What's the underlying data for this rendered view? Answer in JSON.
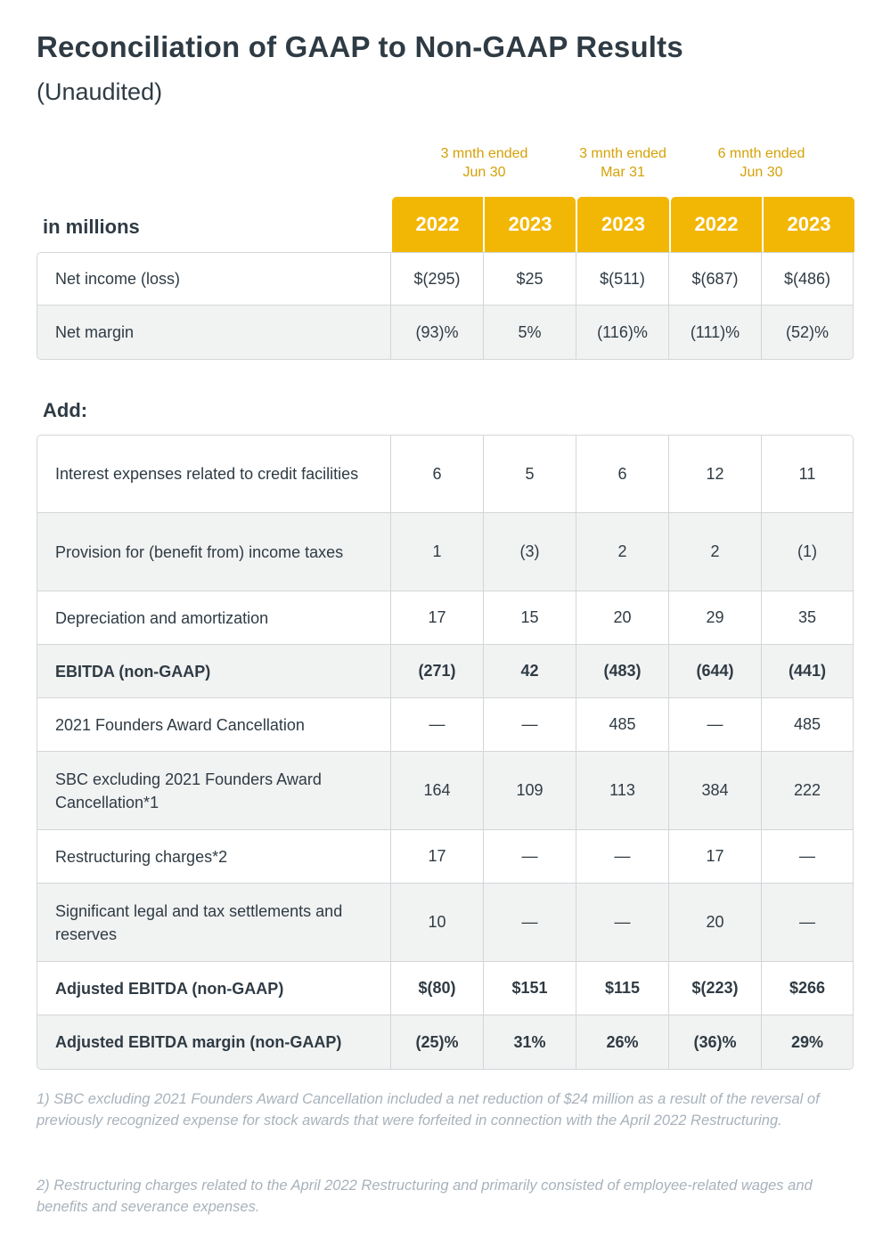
{
  "title": "Reconciliation of GAAP to Non-GAAP Results",
  "subtitle": "(Unaudited)",
  "unit_label": "in millions",
  "periods": [
    {
      "line1": "3 mnth ended",
      "line2": "Jun 30"
    },
    {
      "line1": "3 mnth ended",
      "line2": "Mar 31"
    },
    {
      "line1": "6 mnth ended",
      "line2": "Jun 30"
    }
  ],
  "years": [
    "2022",
    "2023",
    "2023",
    "2022",
    "2023"
  ],
  "accent_color": "#F2B705",
  "top_rows": [
    {
      "label": "Net income (loss)",
      "values": [
        "$(295)",
        "$25",
        "$(511)",
        "$(687)",
        "$(486)"
      ]
    },
    {
      "label": "Net margin",
      "values": [
        "(93)%",
        "5%",
        "(116)%",
        "(111)%",
        "(52)%"
      ]
    }
  ],
  "add_label": "Add:",
  "add_rows": [
    {
      "label": "Interest expenses related to credit facilities",
      "values": [
        "6",
        "5",
        "6",
        "12",
        "11"
      ]
    },
    {
      "label": "Provision for (benefit from) income taxes",
      "values": [
        "1",
        "(3)",
        "2",
        "2",
        "(1)"
      ]
    },
    {
      "label": "Depreciation and amortization",
      "values": [
        "17",
        "15",
        "20",
        "29",
        "35"
      ]
    },
    {
      "label": "EBITDA (non-GAAP)",
      "values": [
        "(271)",
        "42",
        "(483)",
        "(644)",
        "(441)"
      ]
    },
    {
      "label": "2021 Founders Award Cancellation",
      "values": [
        "—",
        "—",
        "485",
        "—",
        "485"
      ]
    },
    {
      "label": "SBC excluding 2021 Founders Award Cancellation*1",
      "values": [
        "164",
        "109",
        "113",
        "384",
        "222"
      ]
    },
    {
      "label": "Restructuring charges*2",
      "values": [
        "17",
        "—",
        "—",
        "17",
        "—"
      ]
    },
    {
      "label": "Significant legal and tax settlements and reserves",
      "values": [
        "10",
        "—",
        "—",
        "20",
        "—"
      ]
    },
    {
      "label": "Adjusted EBITDA (non-GAAP)",
      "values": [
        "$(80)",
        "$151",
        "$115",
        "$(223)",
        "$266"
      ]
    },
    {
      "label": "Adjusted EBITDA margin (non-GAAP)",
      "values": [
        "(25)%",
        "31%",
        "26%",
        "(36)%",
        "29%"
      ]
    }
  ],
  "footnotes": [
    "1) SBC excluding 2021 Founders Award Cancellation included a net reduction of $24 million as a result of the reversal of previously recognized expense for stock awards that were forfeited in connection with the April 2022 Restructuring.",
    "2) Restructuring charges related to the April 2022 Restructuring and primarily consisted of employee-related wages and benefits and severance expenses."
  ]
}
